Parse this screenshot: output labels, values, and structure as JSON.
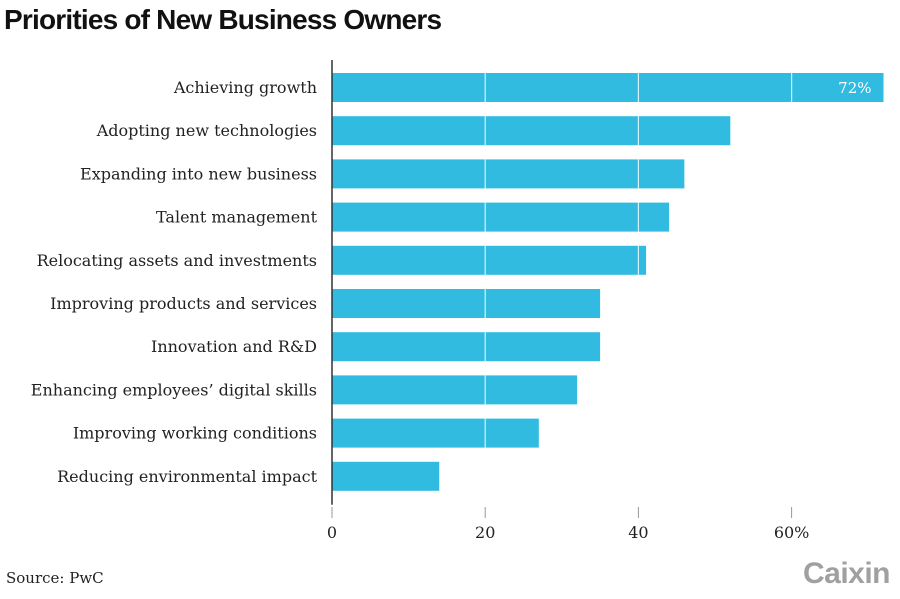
{
  "header": {
    "title": "Priorities of New Business Owners"
  },
  "footer": {
    "source": "Source: PwC",
    "logo": "Caixin"
  },
  "colors": {
    "bar": "#31bbe0",
    "gridline_on_bar": "#ffffff",
    "axis": "#333333",
    "text": "#222222",
    "logo": "#a0a0a0"
  },
  "chart_data": {
    "type": "bar",
    "orientation": "horizontal",
    "title": "Priorities of New Business Owners",
    "xlabel": "",
    "ylabel": "",
    "unit": "%",
    "categories": [
      "Achieving growth",
      "Adopting new technologies",
      "Expanding into new business",
      "Talent management",
      "Relocating assets and investments",
      "Improving products and services",
      "Innovation and R&D",
      "Enhancing employees’ digital skills",
      "Improving working conditions",
      "Reducing environmental impact"
    ],
    "values": [
      72,
      52,
      46,
      44,
      41,
      35,
      35,
      32,
      27,
      14
    ],
    "data_labels": [
      "72%",
      "",
      "",
      "",
      "",
      "",
      "",
      "",
      "",
      ""
    ],
    "xlim": [
      0,
      72
    ],
    "xticks": [
      0,
      20,
      40,
      60
    ],
    "xtick_labels": [
      "0",
      "20",
      "40",
      "60%"
    ],
    "grid": "vertical lines at 20, 40, 60 shown over bars",
    "legend": "none"
  }
}
